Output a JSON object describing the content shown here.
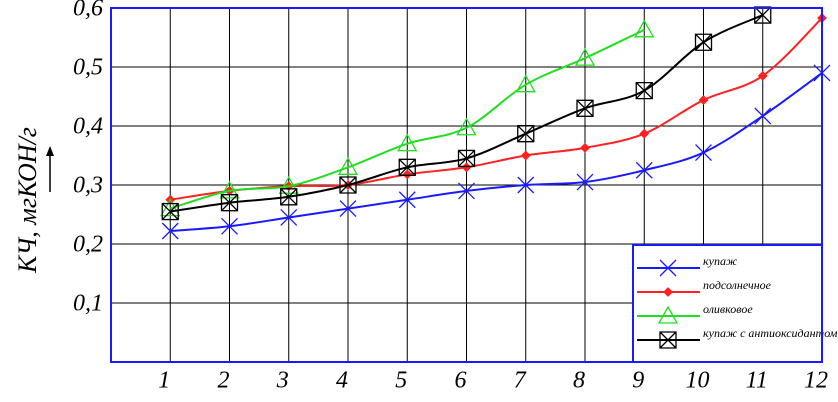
{
  "chart_data": {
    "type": "line",
    "y_label": "КЧ, мгКОН/г",
    "x": [
      1,
      2,
      3,
      4,
      5,
      6,
      7,
      8,
      9,
      10,
      11,
      12
    ],
    "xlim": [
      0,
      12
    ],
    "xticks": [
      1,
      2,
      3,
      4,
      5,
      6,
      7,
      8,
      9,
      10,
      11,
      12
    ],
    "ylim": [
      0,
      0.6
    ],
    "yticks": [
      {
        "value": 0.1,
        "label": "0,1"
      },
      {
        "value": 0.2,
        "label": "0,2"
      },
      {
        "value": 0.3,
        "label": "0,3"
      },
      {
        "value": 0.4,
        "label": "0,4"
      },
      {
        "value": 0.5,
        "label": "0,5"
      },
      {
        "value": 0.6,
        "label": "0,6"
      }
    ],
    "grid": true,
    "legend": "lower right",
    "series": [
      {
        "name": "купаж",
        "color": "#1a1aff",
        "marker": "x",
        "values": [
          0.222,
          0.23,
          0.245,
          0.26,
          0.275,
          0.29,
          0.3,
          0.305,
          0.325,
          0.355,
          0.417,
          0.49
        ]
      },
      {
        "name": "подсолнечное",
        "color": "#ff2020",
        "marker": "dot",
        "values": [
          0.275,
          0.29,
          0.298,
          0.3,
          0.318,
          0.33,
          0.35,
          0.363,
          0.387,
          0.444,
          0.485,
          0.583
        ]
      },
      {
        "name": "оливковое",
        "color": "#22dd22",
        "marker": "triangle",
        "values": [
          0.26,
          0.29,
          0.298,
          0.33,
          0.37,
          0.397,
          0.47,
          0.515,
          0.563,
          null,
          null,
          null
        ]
      },
      {
        "name": "купаж с антиоксидантом",
        "color": "#000000",
        "marker": "boxx",
        "values": [
          0.255,
          0.27,
          0.28,
          0.3,
          0.33,
          0.345,
          0.387,
          0.43,
          0.46,
          0.542,
          0.588,
          null
        ]
      }
    ]
  }
}
